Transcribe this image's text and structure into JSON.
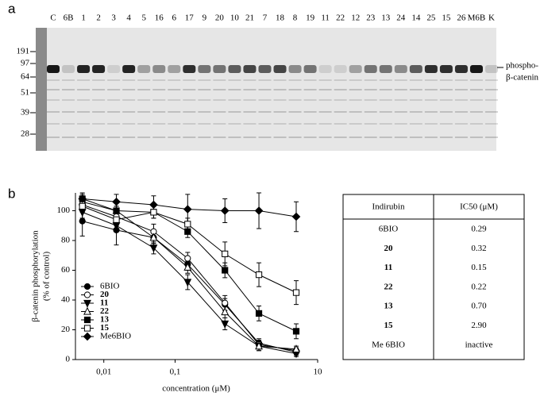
{
  "panel_a": {
    "label": "a",
    "lanes": [
      "C",
      "6B",
      "1",
      "2",
      "3",
      "4",
      "5",
      "16",
      "6",
      "17",
      "9",
      "20",
      "10",
      "21",
      "7",
      "18",
      "8",
      "19",
      "11",
      "22",
      "12",
      "23",
      "13",
      "24",
      "14",
      "25",
      "15",
      "26",
      "M6B",
      "K"
    ],
    "markers": [
      "191",
      "97",
      "64",
      "51",
      "39",
      "28"
    ],
    "annotation": [
      "phospho-",
      "β-catenin"
    ]
  },
  "chart_data": {
    "type": "line",
    "label": "b",
    "xlabel": "concentration (μM)",
    "ylabel": [
      "β-catenin phosphorylation",
      "(% of control)"
    ],
    "x": [
      0.005,
      0.015,
      0.05,
      0.15,
      0.5,
      1.5,
      5
    ],
    "xscale": "log",
    "xlim": [
      0.004,
      10
    ],
    "xticks": [
      {
        "value": 0.01,
        "label": "0,01"
      },
      {
        "value": 0.1,
        "label": "0,1"
      },
      10
    ],
    "ylim": [
      0,
      112
    ],
    "yticks": [
      0,
      20,
      40,
      60,
      80,
      100
    ],
    "series": [
      {
        "name": "6BIO",
        "color": "#000000",
        "marker": "circle",
        "filled": true,
        "values": [
          93,
          87,
          82,
          64,
          37,
          11,
          5
        ],
        "errors": [
          10,
          10,
          4,
          4,
          4,
          3,
          2
        ]
      },
      {
        "name": "20",
        "color": "#000000",
        "marker": "circle",
        "filled": false,
        "values": [
          104,
          96,
          86,
          68,
          38,
          10,
          6
        ],
        "errors": [
          4,
          4,
          5,
          4,
          5,
          3,
          2
        ]
      },
      {
        "name": "11",
        "color": "#000000",
        "marker": "triangle-down",
        "filled": true,
        "values": [
          99,
          90,
          75,
          52,
          24,
          9,
          4
        ],
        "errors": [
          4,
          4,
          4,
          5,
          4,
          3,
          2
        ]
      },
      {
        "name": "22",
        "color": "#000000",
        "marker": "triangle-up",
        "filled": false,
        "values": [
          106,
          100,
          82,
          62,
          32,
          9,
          7
        ],
        "errors": [
          4,
          3,
          4,
          4,
          4,
          3,
          2
        ]
      },
      {
        "name": "13",
        "color": "#000000",
        "marker": "square",
        "filled": true,
        "values": [
          108,
          100,
          99,
          86,
          60,
          31,
          19
        ],
        "errors": [
          3,
          3,
          4,
          4,
          5,
          5,
          5
        ]
      },
      {
        "name": "15",
        "color": "#000000",
        "marker": "square",
        "filled": false,
        "values": [
          103,
          94,
          99,
          91,
          71,
          57,
          45
        ],
        "errors": [
          4,
          4,
          4,
          4,
          8,
          8,
          8
        ]
      },
      {
        "name": "Me6BIO",
        "color": "#000000",
        "marker": "diamond",
        "filled": true,
        "values": [
          108,
          106,
          104,
          101,
          100,
          100,
          96
        ],
        "errors": [
          4,
          5,
          6,
          10,
          8,
          12,
          10
        ]
      }
    ]
  },
  "table": {
    "header": [
      "Indirubin",
      "IC50 (μM)"
    ],
    "rows": [
      [
        "6BIO",
        "0.29"
      ],
      [
        "20",
        "0.32"
      ],
      [
        "11",
        "0.15"
      ],
      [
        "22",
        "0.22"
      ],
      [
        "13",
        "0.70"
      ],
      [
        "15",
        "2.90"
      ],
      [
        "Me 6BIO",
        "inactive"
      ]
    ]
  }
}
